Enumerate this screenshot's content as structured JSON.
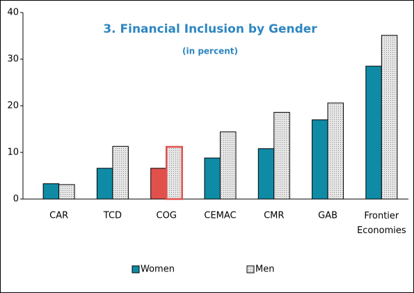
{
  "chart_data": {
    "type": "bar",
    "title": "3. Financial Inclusion by Gender",
    "subtitle": "(in percent)",
    "categories": [
      "CAR",
      "TCD",
      "COG",
      "CEMAC",
      "CMR",
      "GAB",
      "Frontier Economies"
    ],
    "series": [
      {
        "name": "Women",
        "color": "#0f8ba6",
        "values": [
          3.3,
          6.6,
          6.6,
          8.8,
          10.8,
          17.0,
          28.5
        ]
      },
      {
        "name": "Men",
        "color": "#cfcfcf",
        "values": [
          3.1,
          11.3,
          11.2,
          14.4,
          18.6,
          20.6,
          35.1
        ]
      }
    ],
    "highlight_category": "COG",
    "highlight_color": "#e2504c",
    "ylim": [
      0,
      40
    ],
    "yticks": [
      0,
      10,
      20,
      30,
      40
    ],
    "legend": "bottom"
  }
}
